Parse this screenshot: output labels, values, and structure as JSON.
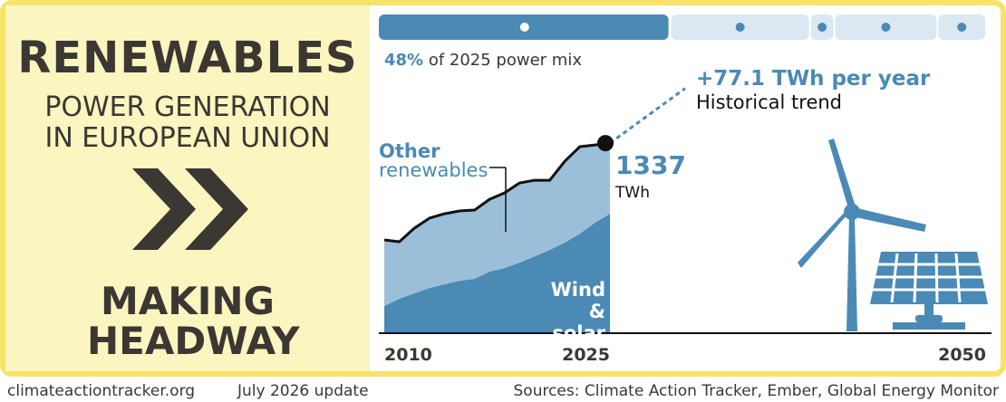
{
  "header": {
    "title": "RENEWABLES",
    "subtitle": "POWER GENERATION IN EUROPEAN UNION",
    "verdict": "MAKING HEADWAY"
  },
  "footer": {
    "site": "climateactiontracker.org",
    "update": "July 2026 update",
    "sources": "Sources: Climate Action Tracker, Ember, Global Energy Monitor"
  },
  "power_mix": {
    "segments": [
      48,
      23,
      4,
      17,
      8
    ],
    "share_label": "48%",
    "text": "of 2025 power mix"
  },
  "chart_data": {
    "type": "stacked-area",
    "x": [
      2010,
      2011,
      2012,
      2013,
      2014,
      2015,
      2016,
      2017,
      2018,
      2019,
      2020,
      2021,
      2022,
      2023,
      2024,
      2025
    ],
    "series": [
      {
        "name": "Wind & solar",
        "color": "#4a8ab5",
        "values": [
          191,
          242,
          280,
          318,
          344,
          369,
          382,
          433,
          458,
          497,
          541,
          586,
          637,
          700,
          777,
          840
        ]
      },
      {
        "name": "Other renewables",
        "color": "#9bbfd8",
        "values": [
          465,
          401,
          459,
          491,
          496,
          491,
          484,
          509,
          529,
          560,
          535,
          490,
          573,
          612,
          547,
          497
        ]
      }
    ],
    "total": {
      "value": 1337,
      "label": "1337",
      "unit": "TWh"
    },
    "trend": {
      "slope": 77.1,
      "label": "+77.1 TWh per year",
      "sublabel": "Historical trend"
    },
    "xlim": [
      2010,
      2050
    ],
    "xticks": [
      2010,
      2025,
      2050
    ],
    "ylim": [
      0,
      2000
    ]
  }
}
